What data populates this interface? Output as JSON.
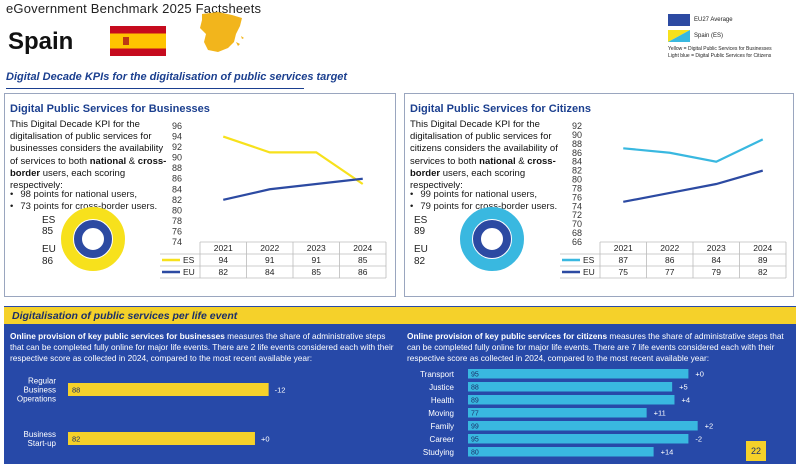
{
  "header": {
    "title": "eGovernment Benchmark 2025 Factsheets",
    "country": "Spain"
  },
  "colors": {
    "eu": "#2c4aa2",
    "es_business": "#f7e11c",
    "es_citizens": "#39b8e0",
    "bottom_bg": "#2749a8",
    "bar_yellow": "#f5d12a",
    "bar_blue": "#39b8e0"
  },
  "legend": {
    "eu_label": "EU27 Average",
    "es_label": "Spain (ES)",
    "note1": "Yellow = Digital Public Services for Businesses",
    "note2": "Light blue = Digital Public Services for Citizens"
  },
  "subtitle": "Digital Decade KPIs for the digitalisation of public services target",
  "business": {
    "title": "Digital Public Services for Businesses",
    "text_a": "This Digital Decade KPI for the digitalisation of public services for businesses considers the availability of services to both ",
    "text_b1": "national",
    "text_c": " & ",
    "text_b2": "cross-border",
    "text_d": " users, each scoring respectively:",
    "bullet1": "98 points for national users,",
    "bullet2": "73 points for cross-border users.",
    "es_label": "ES",
    "es_value": "85",
    "eu_label": "EU",
    "eu_value": "86"
  },
  "citizens": {
    "title": "Digital Public Services for Citizens",
    "text_a": "This Digital Decade KPI for the digitalisation of public services for citizens considers the availability of services to both ",
    "text_b1": "national",
    "text_c": " & ",
    "text_b2": "cross-border",
    "text_d": " users, each scoring respectively:",
    "bullet1": "99 points for national users,",
    "bullet2": "79 points for cross-border users.",
    "es_label": "ES",
    "es_value": "89",
    "eu_label": "EU",
    "eu_value": "82"
  },
  "life_event": {
    "title": "Digitalisation of public services per life event",
    "biz_bold": "Online provision of key public services for businesses",
    "biz_text": " measures the share of administrative steps that can be completed fully online for major life events. There are 2 life events considered each with their respective score as collected in 2024, compared to the most recent available year:",
    "cit_bold": "Online provision of key public services for citizens",
    "cit_text": " measures the share of administrative steps that can be completed fully online for major life events. There are 7 life events considered each with their respective score as collected in 2024, compared to the most recent available year:"
  },
  "page_number": "22",
  "chart_data": [
    {
      "type": "line",
      "title": "Digital Public Services for Businesses",
      "categories": [
        "2021",
        "2022",
        "2023",
        "2024"
      ],
      "ylim": [
        74,
        96
      ],
      "yticks": [
        74,
        76,
        78,
        80,
        82,
        84,
        86,
        88,
        90,
        92,
        94,
        96
      ],
      "series": [
        {
          "name": "ES",
          "values": [
            94,
            91,
            91,
            85
          ],
          "color": "#f7e11c"
        },
        {
          "name": "EU",
          "values": [
            82,
            84,
            85,
            86
          ],
          "color": "#2c4aa2"
        }
      ]
    },
    {
      "type": "line",
      "title": "Digital Public Services for Citizens",
      "categories": [
        "2021",
        "2022",
        "2023",
        "2024"
      ],
      "ylim": [
        66,
        92
      ],
      "yticks": [
        66,
        68,
        70,
        72,
        74,
        76,
        78,
        80,
        82,
        84,
        86,
        88,
        90,
        92
      ],
      "series": [
        {
          "name": "ES",
          "values": [
            87,
            86,
            84,
            89
          ],
          "color": "#39b8e0"
        },
        {
          "name": "EU",
          "values": [
            75,
            77,
            79,
            82
          ],
          "color": "#2c4aa2"
        }
      ]
    },
    {
      "type": "bar",
      "title": "Online provision of key public services for businesses",
      "categories": [
        "Regular Business Operations",
        "Business Start-up"
      ],
      "values": [
        88,
        82
      ],
      "changes": [
        "-12",
        "+0"
      ],
      "xlim": [
        0,
        100
      ]
    },
    {
      "type": "bar",
      "title": "Online provision of key public services for citizens",
      "categories": [
        "Transport",
        "Justice",
        "Health",
        "Moving",
        "Family",
        "Career",
        "Studying"
      ],
      "values": [
        95,
        88,
        89,
        77,
        99,
        95,
        80
      ],
      "changes": [
        "+0",
        "+5",
        "+4",
        "+11",
        "+2",
        "-2",
        "+14"
      ],
      "xlim": [
        0,
        100
      ]
    }
  ]
}
